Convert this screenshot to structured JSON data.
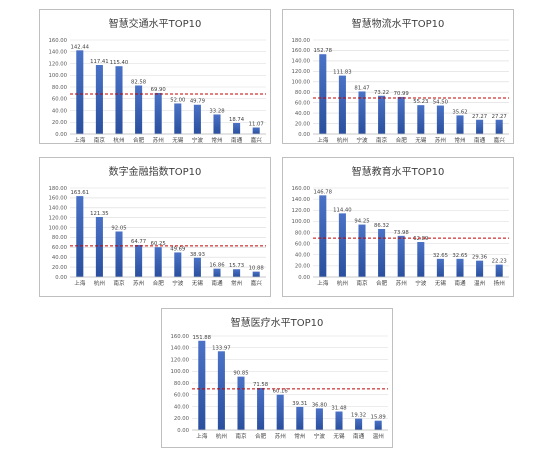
{
  "colors": {
    "bar_top": "#4a72c6",
    "bar_bottom": "#2a4f9e",
    "ref_line": "#c00000",
    "grid": "#d9d9d9",
    "frame": "#bfbfbf"
  },
  "chart_data": [
    {
      "type": "bar",
      "title": "智慧交通水平TOP10",
      "categories": [
        "上海",
        "南京",
        "杭州",
        "合肥",
        "苏州",
        "无锡",
        "宁波",
        "常州",
        "南通",
        "嘉兴"
      ],
      "values": [
        142.44,
        117.41,
        115.4,
        82.58,
        69.9,
        52.0,
        49.79,
        33.28,
        18.74,
        11.07
      ],
      "value_labels": [
        "142.44",
        "117.41",
        "115.40",
        "82.58",
        "69.90",
        "52.00",
        "49.79",
        "33.28",
        "18.74",
        "11.07"
      ],
      "yticks": [
        "0.00",
        "20.00",
        "40.00",
        "60.00",
        "80.00",
        "100.00",
        "120.00",
        "140.00",
        "160.00"
      ],
      "ylim": [
        0,
        160
      ],
      "reference_line": 68,
      "grid": true
    },
    {
      "type": "bar",
      "title": "智慧物流水平TOP10",
      "categories": [
        "上海",
        "杭州",
        "宁波",
        "南京",
        "合肥",
        "无锡",
        "苏州",
        "常州",
        "南通",
        "嘉兴"
      ],
      "values": [
        152.78,
        111.83,
        81.47,
        73.22,
        70.99,
        55.23,
        54.5,
        35.62,
        27.27,
        27.27
      ],
      "value_labels": [
        "152.78",
        "111.83",
        "81.47",
        "73.22",
        "70.99",
        "55.23",
        "54.50",
        "35.62",
        "27.27",
        "27.27"
      ],
      "yticks": [
        "0.00",
        "20.00",
        "40.00",
        "60.00",
        "80.00",
        "100.00",
        "120.00",
        "140.00",
        "160.00",
        "180.00"
      ],
      "ylim": [
        0,
        180
      ],
      "reference_line": 69,
      "grid": true
    },
    {
      "type": "bar",
      "title": "数字金融指数TOP10",
      "categories": [
        "上海",
        "杭州",
        "南京",
        "苏州",
        "合肥",
        "宁波",
        "无锡",
        "南通",
        "常州",
        "嘉兴"
      ],
      "values": [
        163.61,
        121.35,
        92.05,
        64.77,
        60.25,
        49.69,
        38.93,
        16.86,
        15.73,
        10.88
      ],
      "value_labels": [
        "163.61",
        "121.35",
        "92.05",
        "64.77",
        "60.25",
        "49.69",
        "38.93",
        "16.86",
        "15.73",
        "10.88"
      ],
      "yticks": [
        "0.00",
        "20.00",
        "40.00",
        "60.00",
        "80.00",
        "100.00",
        "120.00",
        "140.00",
        "160.00",
        "180.00"
      ],
      "ylim": [
        0,
        180
      ],
      "reference_line": 63,
      "grid": true
    },
    {
      "type": "bar",
      "title": "智慧教育水平TOP10",
      "categories": [
        "上海",
        "杭州",
        "南京",
        "合肥",
        "苏州",
        "宁波",
        "无锡",
        "南通",
        "温州",
        "扬州"
      ],
      "values": [
        146.78,
        114.4,
        94.25,
        86.32,
        73.98,
        62.89,
        32.65,
        32.65,
        29.36,
        22.23
      ],
      "value_labels": [
        "146.78",
        "114.40",
        "94.25",
        "86.32",
        "73.98",
        "62.89",
        "32.65",
        "32.65",
        "29.36",
        "22.23"
      ],
      "yticks": [
        "0.00",
        "20.00",
        "40.00",
        "60.00",
        "80.00",
        "100.00",
        "120.00",
        "140.00",
        "160.00"
      ],
      "ylim": [
        0,
        160
      ],
      "reference_line": 70,
      "grid": true
    },
    {
      "type": "bar",
      "title": "智慧医疗水平TOP10",
      "categories": [
        "上海",
        "杭州",
        "南京",
        "合肥",
        "苏州",
        "常州",
        "宁波",
        "无锡",
        "南通",
        "温州"
      ],
      "values": [
        151.88,
        133.97,
        90.85,
        71.58,
        60.16,
        39.31,
        36.8,
        31.48,
        19.32,
        15.89
      ],
      "value_labels": [
        "151.88",
        "133.97",
        "90.85",
        "71.58",
        "60.16",
        "39.31",
        "36.80",
        "31.48",
        "19.32",
        "15.89"
      ],
      "yticks": [
        "0.00",
        "20.00",
        "40.00",
        "60.00",
        "80.00",
        "100.00",
        "120.00",
        "140.00",
        "160.00"
      ],
      "ylim": [
        0,
        160
      ],
      "reference_line": 70,
      "grid": true
    }
  ]
}
